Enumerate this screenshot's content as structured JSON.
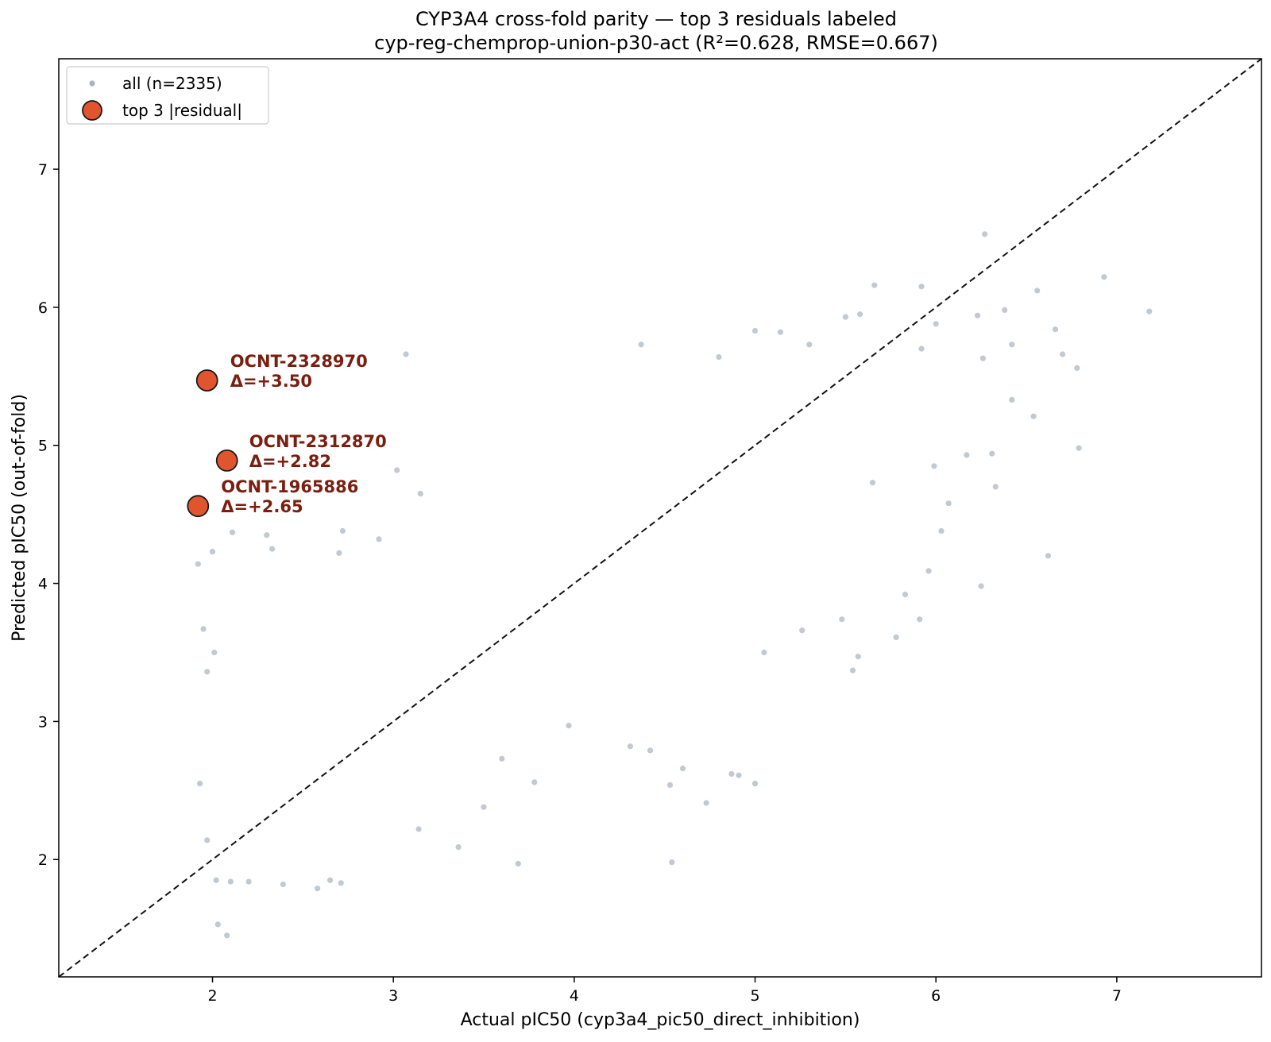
{
  "chart_data": {
    "type": "scatter",
    "title": "CYP3A4 cross-fold parity — top 3 residuals labeled",
    "subtitle": "cyp-reg-chemprop-union-p30-act  (R²=0.628, RMSE=0.667)",
    "xlabel": "Actual pIC50 (cyp3a4_pic50_direct_inhibition)",
    "ylabel": "Predicted pIC50 (out-of-fold)",
    "xlim": [
      1.15,
      7.8
    ],
    "ylim": [
      1.15,
      7.8
    ],
    "xticks": [
      "2",
      "3",
      "4",
      "5",
      "6",
      "7"
    ],
    "yticks": [
      "2",
      "3",
      "4",
      "5",
      "6",
      "7"
    ],
    "grid": false,
    "legend_position": "top-left",
    "identity_line": true,
    "colors": {
      "all": "#a9b4c2",
      "top": "#e05530",
      "top_edge": "#1a1a1a",
      "annotation": "#7a1f10",
      "identity": "#111111"
    },
    "series": [
      {
        "name": "all (n=2335)",
        "points": [
          [
            6.27,
            6.53
          ],
          [
            6.93,
            6.22
          ],
          [
            7.18,
            5.97
          ],
          [
            5.66,
            6.16
          ],
          [
            5.92,
            6.15
          ],
          [
            6.56,
            6.12
          ],
          [
            6.38,
            5.98
          ],
          [
            6.23,
            5.94
          ],
          [
            6.66,
            5.84
          ],
          [
            6.42,
            5.73
          ],
          [
            6.7,
            5.66
          ],
          [
            6.78,
            5.56
          ],
          [
            6.26,
            5.63
          ],
          [
            6.42,
            5.33
          ],
          [
            6.54,
            5.21
          ],
          [
            6.79,
            4.98
          ],
          [
            6.31,
            4.94
          ],
          [
            6.33,
            4.7
          ],
          [
            6.62,
            4.2
          ],
          [
            6.25,
            3.98
          ],
          [
            4.37,
            5.73
          ],
          [
            5.0,
            5.83
          ],
          [
            5.14,
            5.82
          ],
          [
            3.07,
            5.66
          ],
          [
            4.8,
            5.64
          ],
          [
            5.3,
            5.73
          ],
          [
            5.5,
            5.93
          ],
          [
            5.58,
            5.95
          ],
          [
            6.0,
            5.88
          ],
          [
            5.92,
            5.7
          ],
          [
            3.02,
            4.82
          ],
          [
            3.15,
            4.65
          ],
          [
            2.72,
            4.38
          ],
          [
            2.7,
            4.22
          ],
          [
            2.92,
            4.32
          ],
          [
            2.3,
            4.35
          ],
          [
            2.33,
            4.25
          ],
          [
            2.11,
            4.37
          ],
          [
            2.0,
            4.23
          ],
          [
            1.92,
            4.14
          ],
          [
            1.95,
            3.67
          ],
          [
            2.01,
            3.5
          ],
          [
            1.97,
            3.36
          ],
          [
            1.93,
            2.55
          ],
          [
            1.97,
            2.14
          ],
          [
            2.03,
            1.53
          ],
          [
            2.08,
            1.45
          ],
          [
            2.02,
            1.85
          ],
          [
            2.1,
            1.84
          ],
          [
            2.2,
            1.84
          ],
          [
            2.39,
            1.82
          ],
          [
            2.58,
            1.79
          ],
          [
            2.65,
            1.85
          ],
          [
            2.71,
            1.83
          ],
          [
            3.36,
            2.09
          ],
          [
            3.14,
            2.22
          ],
          [
            3.69,
            1.97
          ],
          [
            4.54,
            1.98
          ],
          [
            4.73,
            2.41
          ],
          [
            4.6,
            2.66
          ],
          [
            4.87,
            2.62
          ],
          [
            4.91,
            2.61
          ],
          [
            5.0,
            2.55
          ],
          [
            4.53,
            2.54
          ],
          [
            5.05,
            3.5
          ],
          [
            5.26,
            3.66
          ],
          [
            5.48,
            3.74
          ],
          [
            5.54,
            3.37
          ],
          [
            5.57,
            3.47
          ],
          [
            5.78,
            3.61
          ],
          [
            5.91,
            3.74
          ],
          [
            5.96,
            4.09
          ],
          [
            6.03,
            4.38
          ],
          [
            6.07,
            4.58
          ],
          [
            6.17,
            4.93
          ],
          [
            5.83,
            3.92
          ],
          [
            5.99,
            4.85
          ],
          [
            5.65,
            4.73
          ],
          [
            4.42,
            2.79
          ],
          [
            4.31,
            2.82
          ],
          [
            3.97,
            2.97
          ],
          [
            3.6,
            2.73
          ],
          [
            3.78,
            2.56
          ],
          [
            3.5,
            2.38
          ]
        ]
      },
      {
        "name": "top 3 |residual|",
        "points": [
          {
            "x": 1.97,
            "y": 5.47,
            "id": "OCNT-2328970",
            "delta": "Δ=+3.50"
          },
          {
            "x": 2.08,
            "y": 4.89,
            "id": "OCNT-2312870",
            "delta": "Δ=+2.82"
          },
          {
            "x": 1.92,
            "y": 4.56,
            "id": "OCNT-1965886",
            "delta": "Δ=+2.65"
          }
        ]
      }
    ]
  }
}
